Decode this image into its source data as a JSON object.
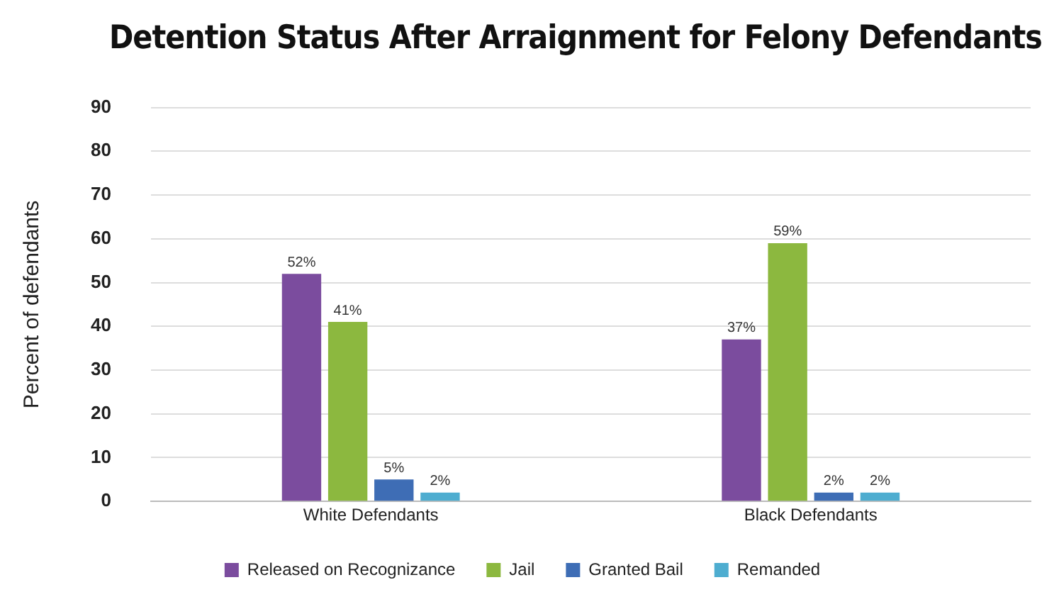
{
  "chart_data": {
    "type": "bar",
    "title": "Detention Status After Arraignment for Felony Defendants",
    "ylabel": "Percent of defendants",
    "categories": [
      "White Defendants",
      "Black Defendants"
    ],
    "series": [
      {
        "name": "Released on Recognizance",
        "color": "#7b4c9e",
        "values": [
          52,
          37
        ],
        "value_labels": [
          "52%",
          "37%"
        ]
      },
      {
        "name": "Jail",
        "color": "#8cb83f",
        "values": [
          41,
          59
        ],
        "value_labels": [
          "41%",
          "59%"
        ]
      },
      {
        "name": "Granted Bail",
        "color": "#3e6db5",
        "values": [
          5,
          2
        ],
        "value_labels": [
          "5%",
          "2%"
        ]
      },
      {
        "name": "Remanded",
        "color": "#4eadd0",
        "values": [
          2,
          2
        ],
        "value_labels": [
          "2%",
          "2%"
        ]
      }
    ],
    "ylim": [
      0,
      90
    ],
    "yticks": [
      0,
      10,
      20,
      30,
      40,
      50,
      60,
      70,
      80,
      90
    ],
    "grid": "y",
    "legend": "bottom"
  }
}
